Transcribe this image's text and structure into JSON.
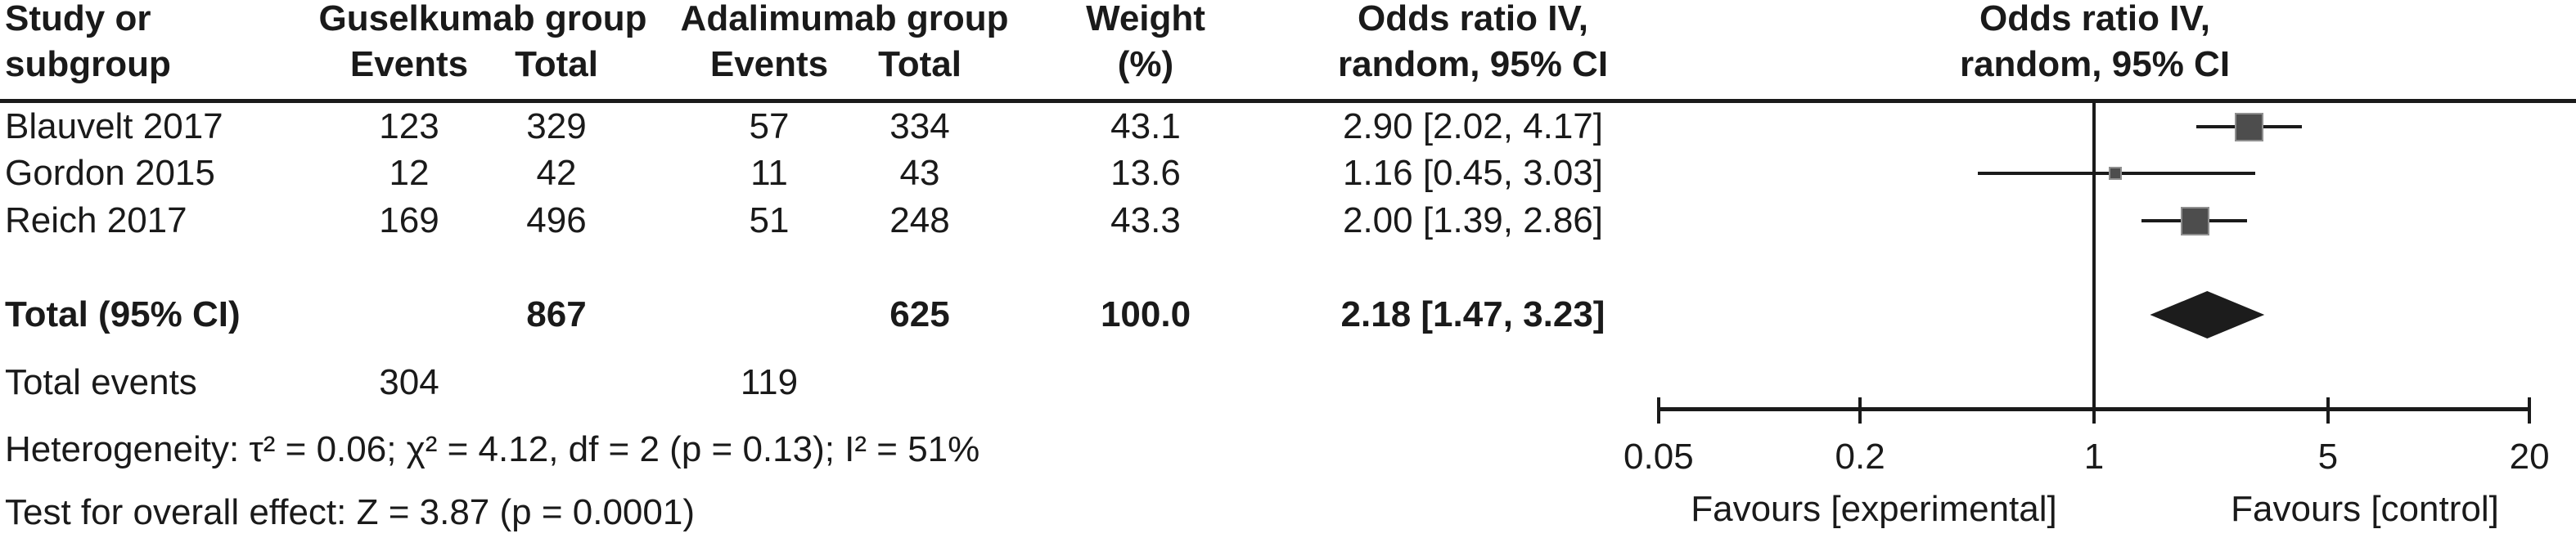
{
  "header": {
    "study": [
      "Study or",
      "subgroup"
    ],
    "guselkumab": {
      "group": "Guselkumab group",
      "events": "Events",
      "total": "Total"
    },
    "adalimumab": {
      "group": "Adalimumab group",
      "events": "Events",
      "total": "Total"
    },
    "weight": [
      "Weight",
      "(%)"
    ],
    "or_text": [
      "Odds ratio IV,",
      "random, 95% CI"
    ],
    "or_plot": [
      "Odds ratio IV,",
      "random, 95% CI"
    ]
  },
  "table": {
    "rows": [
      {
        "study": "Blauvelt 2017",
        "g_events": "123",
        "g_total": "329",
        "a_events": "57",
        "a_total": "334",
        "weight": "43.1",
        "or_ci": "2.90 [2.02, 4.17]"
      },
      {
        "study": "Gordon 2015",
        "g_events": "12",
        "g_total": "42",
        "a_events": "11",
        "a_total": "43",
        "weight": "13.6",
        "or_ci": "1.16 [0.45, 3.03]"
      },
      {
        "study": "Reich 2017",
        "g_events": "169",
        "g_total": "496",
        "a_events": "51",
        "a_total": "248",
        "weight": "43.3",
        "or_ci": "2.00 [1.39, 2.86]"
      }
    ]
  },
  "total_row": {
    "label": "Total (95% CI)",
    "g_total": "867",
    "a_total": "625",
    "weight": "100.0",
    "or_ci": "2.18 [1.47, 3.23]"
  },
  "total_events_row": {
    "label": "Total events",
    "g_events": "304",
    "a_events": "119"
  },
  "stats": {
    "heterogeneity": "Heterogeneity: τ² = 0.06; χ² = 4.12, df = 2 (p = 0.13); I² = 51%",
    "overall_effect": "Test for overall effect: Z = 3.87 (p = 0.0001)"
  },
  "axis": {
    "scale": "log",
    "tick_labels": [
      "0.05",
      "0.2",
      "1",
      "5",
      "20"
    ],
    "tick_values": [
      0.05,
      0.2,
      1,
      5,
      20
    ],
    "favours_left": "Favours [experimental]",
    "favours_right": "Favours [control]"
  },
  "colors": {
    "text": "#1a1a1a",
    "line": "#1a1a1a",
    "marker_fill": "#4d4d4d",
    "marker_border": "#8f8f8f",
    "diamond": "#1c1c1c",
    "background": "#ffffff"
  },
  "chart_data": {
    "type": "forest",
    "title": "Odds ratio IV, random, 95% CI",
    "effect_measure": "Odds ratio",
    "model": "IV, random, 95% CI",
    "groups": [
      "Guselkumab group",
      "Adalimumab group"
    ],
    "studies": [
      {
        "label": "Blauvelt 2017",
        "g_events": 123,
        "g_total": 329,
        "a_events": 57,
        "a_total": 334,
        "weight_pct": 43.1,
        "or": 2.9,
        "ci_low": 2.02,
        "ci_high": 4.17
      },
      {
        "label": "Gordon 2015",
        "g_events": 12,
        "g_total": 42,
        "a_events": 11,
        "a_total": 43,
        "weight_pct": 13.6,
        "or": 1.16,
        "ci_low": 0.45,
        "ci_high": 3.03
      },
      {
        "label": "Reich 2017",
        "g_events": 169,
        "g_total": 496,
        "a_events": 51,
        "a_total": 248,
        "weight_pct": 43.3,
        "or": 2.0,
        "ci_low": 1.39,
        "ci_high": 2.86
      }
    ],
    "total": {
      "label": "Total (95% CI)",
      "g_total": 867,
      "a_total": 625,
      "weight_pct": 100.0,
      "or": 2.18,
      "ci_low": 1.47,
      "ci_high": 3.23,
      "g_events": 304,
      "a_events": 119
    },
    "heterogeneity": {
      "tau2": 0.06,
      "chi2": 4.12,
      "df": 2,
      "p": 0.13,
      "I2_pct": 51
    },
    "overall_effect": {
      "Z": 3.87,
      "p": 0.0001
    },
    "x_axis": {
      "scale": "log",
      "ticks": [
        0.05,
        0.2,
        1,
        5,
        20
      ],
      "range": [
        0.05,
        20
      ],
      "reference_line": 1
    },
    "annotations": [
      "Favours [experimental]",
      "Favours [control]"
    ],
    "legend_position": "none",
    "grid": false
  }
}
